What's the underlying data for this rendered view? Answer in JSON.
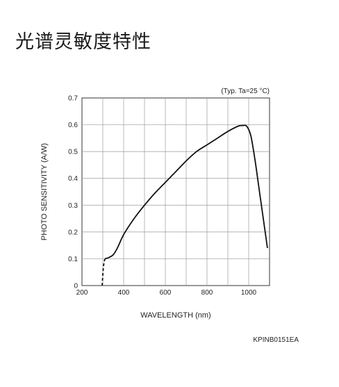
{
  "page": {
    "title": "光谱灵敏度特性",
    "figure_code": "KPINB0151EA"
  },
  "chart_data": {
    "type": "line",
    "title": "",
    "annotation": "(Typ. Ta=25 °C)",
    "xlabel": "WAVELENGTH (nm)",
    "ylabel": "PHOTO SENSITIVITY (A/W)",
    "xlim": [
      200,
      1100
    ],
    "ylim": [
      0,
      0.7
    ],
    "x_ticks": [
      200,
      400,
      600,
      800,
      1000
    ],
    "x_tick_labels": [
      "200",
      "400",
      "600",
      "800",
      "1000"
    ],
    "y_ticks": [
      0,
      0.1,
      0.2,
      0.3,
      0.4,
      0.5,
      0.6,
      0.7
    ],
    "y_tick_labels": [
      "0",
      "0.1",
      "0.2",
      "0.3",
      "0.4",
      "0.5",
      "0.6",
      "0.7"
    ],
    "x_grid_step": 100,
    "grid": true,
    "color": "#111111",
    "series": [
      {
        "style": "dashed",
        "x": [
          297,
          300,
          303,
          307,
          311
        ],
        "y": [
          0.0,
          0.04,
          0.07,
          0.09,
          0.1
        ]
      },
      {
        "style": "solid",
        "x": [
          311,
          330,
          350,
          370,
          400,
          450,
          500,
          550,
          600,
          650,
          700,
          750,
          800,
          850,
          900,
          950,
          970,
          990,
          1010,
          1030,
          1050,
          1070,
          1090
        ],
        "y": [
          0.1,
          0.105,
          0.115,
          0.14,
          0.19,
          0.25,
          0.3,
          0.345,
          0.385,
          0.425,
          0.465,
          0.5,
          0.525,
          0.55,
          0.575,
          0.595,
          0.597,
          0.595,
          0.56,
          0.47,
          0.36,
          0.25,
          0.14
        ]
      }
    ]
  }
}
